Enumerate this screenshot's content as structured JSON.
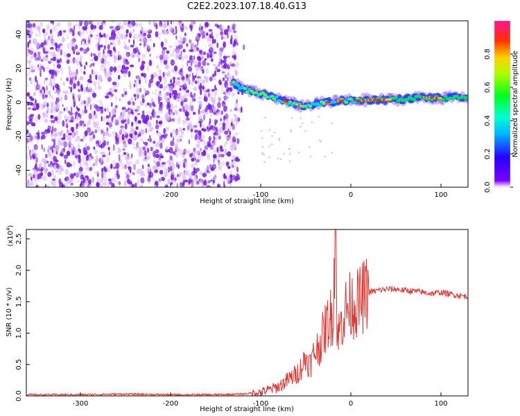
{
  "title": "C2E2.2023.107.18.40.G13",
  "colors": {
    "snr_line": "#e8322e",
    "scatter_dot": "#7a1fe6",
    "scatter_haze": "#d9b8f7"
  },
  "chart_data": [
    {
      "type": "heatmap",
      "panel": "top",
      "xlabel": "Height of straight line (km)",
      "ylabel": "Frequency (Hz)",
      "xlim": [
        -360,
        130
      ],
      "ylim": [
        -50,
        48
      ],
      "x_ticks": [
        -300,
        -200,
        -100,
        0,
        100
      ],
      "x_tick_labels": [
        "-300",
        "-200",
        "-100",
        "0",
        "100"
      ],
      "y_ticks": [
        -40,
        -20,
        0,
        20,
        40
      ],
      "y_tick_labels": [
        "-40",
        "-20",
        "0",
        "20",
        "40"
      ],
      "noise_region_x": [
        -360,
        -125
      ],
      "signal_track": {
        "x": [
          -130,
          -115,
          -100,
          -85,
          -70,
          -55,
          -40,
          -25,
          -10,
          0,
          20,
          40,
          60,
          80,
          100,
          130
        ],
        "y": [
          11,
          7,
          5,
          3,
          0,
          -2,
          -1,
          0,
          1,
          1,
          1.5,
          1.5,
          2,
          3,
          2.5,
          3
        ]
      },
      "colorbar": {
        "label": "Normalized spectral amplitude",
        "range": [
          0,
          1
        ],
        "ticks": [
          0.0,
          0.2,
          0.4,
          0.6,
          0.8
        ],
        "tick_labels": [
          "0.0",
          "0.2",
          "0.4",
          "0.6",
          "0.8"
        ]
      }
    },
    {
      "type": "line",
      "panel": "bottom",
      "xlabel": "Height of straight line (km)",
      "ylabel": "SNR (10 * v/v)",
      "multiplier_label": "(x10",
      "multiplier_exponent": "4",
      "multiplier_suffix": ")",
      "xlim": [
        -360,
        130
      ],
      "ylim": [
        0,
        2.65
      ],
      "x_ticks": [
        -300,
        -200,
        -100,
        0,
        100
      ],
      "x_tick_labels": [
        "-300",
        "-200",
        "-100",
        "0",
        "100"
      ],
      "y_ticks": [
        0.0,
        0.5,
        1.0,
        1.5,
        2.0,
        2.5
      ],
      "y_tick_labels": [
        "0.0",
        "0.5",
        "1.0",
        "1.5",
        "2.0",
        "2.5"
      ],
      "series": [
        {
          "color": "#e8322e",
          "x": [
            -360,
            -300,
            -250,
            -200,
            -150,
            -120,
            -100,
            -90,
            -80,
            -70,
            -60,
            -55,
            -50,
            -45,
            -40,
            -35,
            -30,
            -25,
            -20,
            -17,
            -15,
            -10,
            -5,
            0,
            5,
            10,
            15,
            20,
            30,
            40,
            50,
            60,
            70,
            80,
            90,
            100,
            110,
            120,
            130
          ],
          "y": [
            0.02,
            0.02,
            0.03,
            0.02,
            0.02,
            0.03,
            0.06,
            0.1,
            0.15,
            0.25,
            0.35,
            0.45,
            0.6,
            0.5,
            0.7,
            0.8,
            1.0,
            1.2,
            1.3,
            2.65,
            0.9,
            1.2,
            1.4,
            1.45,
            1.45,
            1.5,
            1.6,
            1.65,
            1.68,
            1.7,
            1.7,
            1.68,
            1.67,
            1.65,
            1.63,
            1.65,
            1.62,
            1.6,
            1.58
          ]
        }
      ]
    }
  ]
}
